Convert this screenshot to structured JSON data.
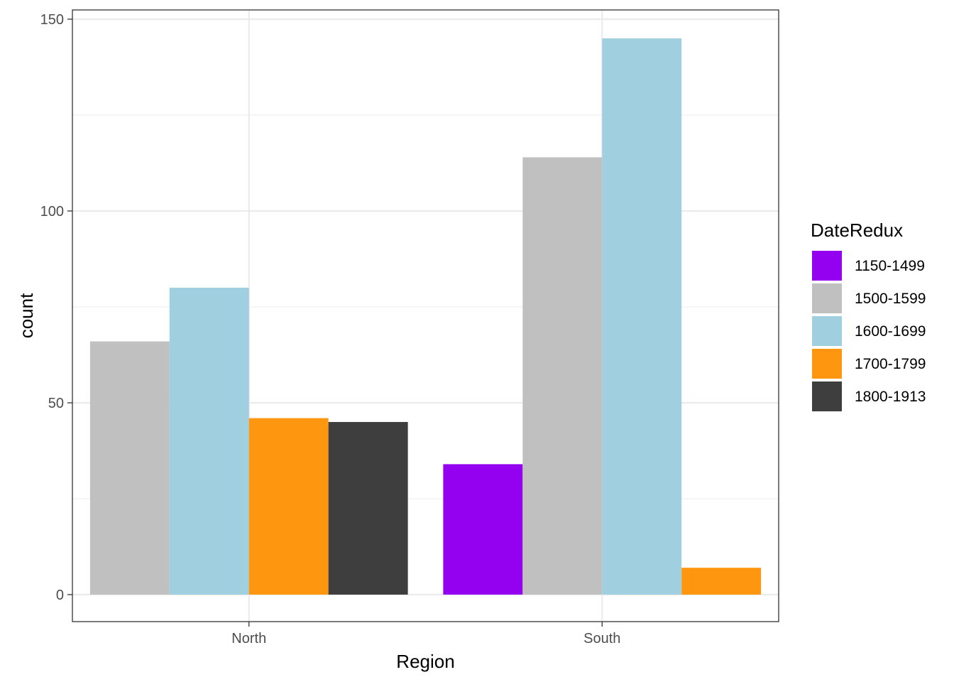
{
  "chart_data": {
    "type": "bar",
    "title": "",
    "xlabel": "Region",
    "ylabel": "count",
    "categories": [
      "North",
      "South"
    ],
    "ylim": [
      -7,
      150
    ],
    "yticks": [
      0,
      50,
      100,
      150
    ],
    "grid": true,
    "legend_title": "DateRedux",
    "legend_position": "right",
    "series": [
      {
        "name": "1150-1499",
        "color": "#9400F0",
        "values": [
          null,
          34
        ]
      },
      {
        "name": "1500-1599",
        "color": "#C0C0C0",
        "values": [
          66,
          114
        ]
      },
      {
        "name": "1600-1699",
        "color": "#A0CFE0",
        "values": [
          80,
          145
        ]
      },
      {
        "name": "1700-1799",
        "color": "#FF960F",
        "values": [
          46,
          7
        ]
      },
      {
        "name": "1800-1913",
        "color": "#3E3E3E",
        "values": [
          45,
          null
        ]
      }
    ]
  }
}
